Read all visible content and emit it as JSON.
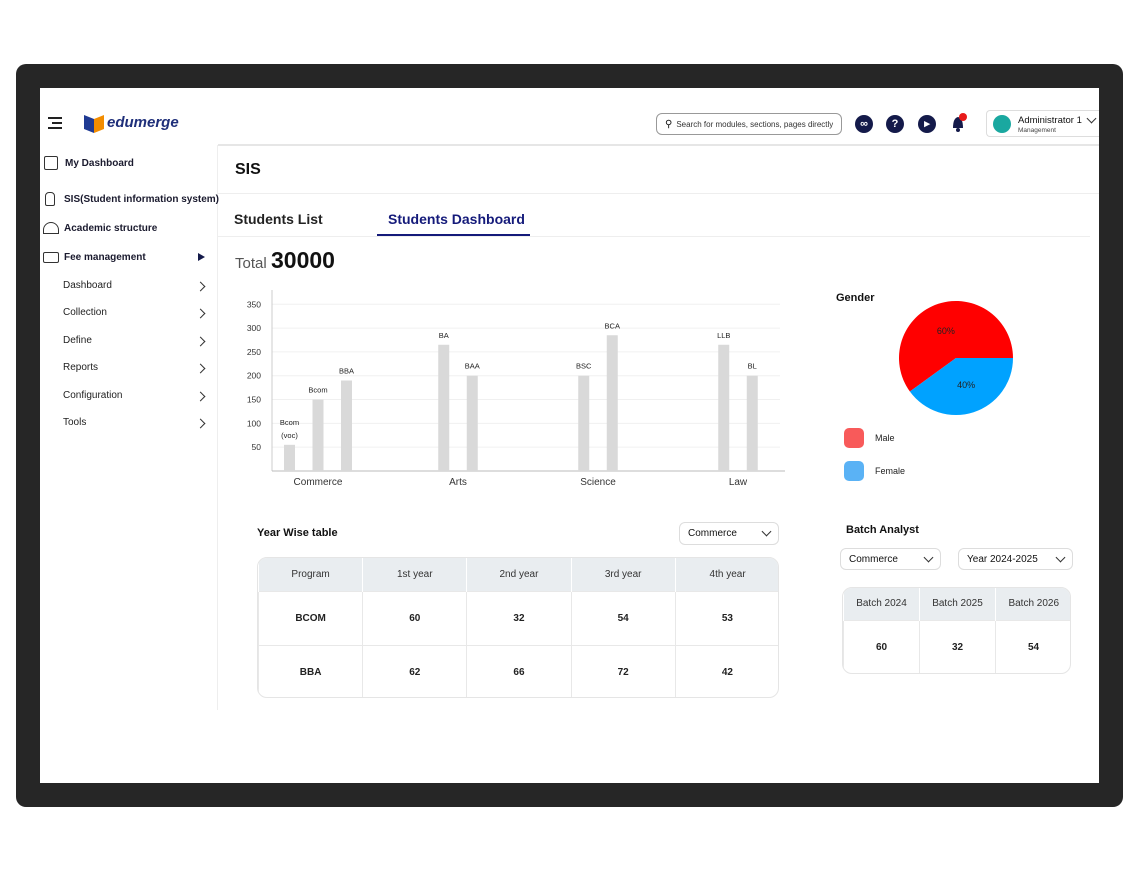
{
  "brand": "edumerge",
  "search_placeholder": "Search for modules, sections, pages directly...",
  "user": {
    "name": "Administrator 1",
    "role": "Management"
  },
  "sidebar": {
    "items": [
      "My Dashboard",
      "SIS(Student information system)",
      "Academic structure",
      "Fee management"
    ],
    "subitems": [
      "Dashboard",
      "Collection",
      "Define",
      "Reports",
      "Configuration",
      "Tools"
    ]
  },
  "page_title": "SIS",
  "tabs": [
    "Students List",
    "Students Dashboard"
  ],
  "total": {
    "label": "Total",
    "value": 30000
  },
  "chart_data": [
    {
      "type": "bar",
      "color": "#d9d9d9",
      "groups": [
        {
          "name": "Commerce",
          "categories": [
            "Bcom (voc)",
            "Bcom",
            "BBA"
          ],
          "values": [
            55,
            150,
            190
          ]
        },
        {
          "name": "Arts",
          "categories": [
            "BA",
            "BAA"
          ],
          "values": [
            265,
            200
          ]
        },
        {
          "name": "Science",
          "categories": [
            "BSC",
            "BCA"
          ],
          "values": [
            200,
            285
          ]
        },
        {
          "name": "Law",
          "categories": [
            "LLB",
            "BL"
          ],
          "values": [
            265,
            200
          ]
        }
      ],
      "ylim": [
        0,
        380
      ],
      "yticks": [
        50,
        100,
        150,
        200,
        250,
        300,
        350
      ],
      "grid": true
    },
    {
      "type": "pie",
      "title": "Gender",
      "categories": [
        "Male",
        "Female"
      ],
      "values": [
        60,
        40
      ],
      "value_labels": [
        "60%",
        "40%"
      ],
      "colors": [
        "#ff0000",
        "#00a2ff"
      ],
      "legend_colors": [
        "#f85a5a",
        "#5ab2f5"
      ]
    }
  ],
  "year_table": {
    "title": "Year Wise table",
    "filter": "Commerce",
    "header": [
      "Program",
      "1st year",
      "2nd year",
      "3rd year",
      "4th year"
    ],
    "rows": [
      [
        "BCOM",
        60,
        32,
        54,
        53
      ],
      [
        "BBA",
        62,
        66,
        72,
        42
      ]
    ]
  },
  "batch_table": {
    "title": "Batch Analyst",
    "filters": [
      "Commerce",
      "Year 2024-2025"
    ],
    "header": [
      "Batch 2024",
      "Batch 2025",
      "Batch 2026"
    ],
    "rows": [
      [
        60,
        32,
        54
      ]
    ]
  }
}
